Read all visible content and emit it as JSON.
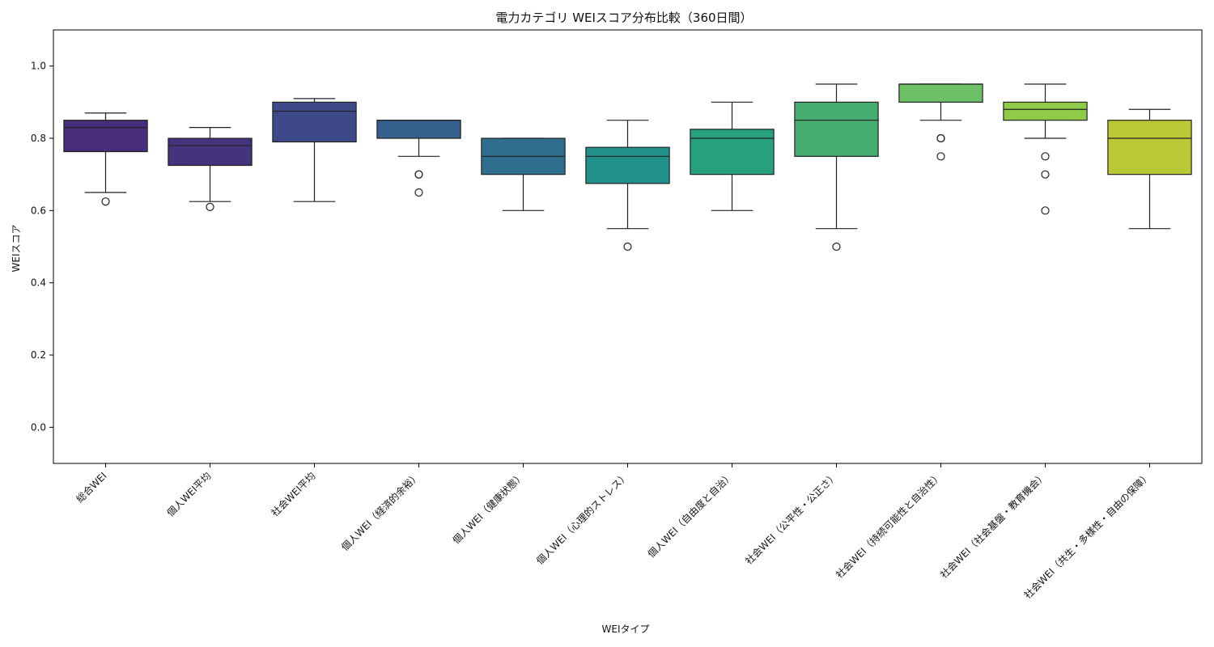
{
  "chart_data": {
    "type": "box",
    "title": "電力カテゴリ WEIスコア分布比較（360日間）",
    "xlabel": "WEIタイプ",
    "ylabel": "WEIスコア",
    "ylim": [
      -0.1,
      1.1
    ],
    "yticks": [
      "0.0",
      "0.2",
      "0.4",
      "0.6",
      "0.8",
      "1.0"
    ],
    "grid": false,
    "categories": [
      "総合WEI",
      "個人WEI平均",
      "社会WEI平均",
      "個人WEI（経済的余裕）",
      "個人WEI（健康状態）",
      "個人WEI（心理的ストレス）",
      "個人WEI（自由度と自治）",
      "社会WEI（公平性・公正さ）",
      "社会WEI（持続可能性と自治性）",
      "社会WEI（社会基盤・教育機会）",
      "社会WEI（共生・多様性・自由の保障）"
    ],
    "boxes": [
      {
        "whisker_low": 0.65,
        "q1": 0.763,
        "median": 0.83,
        "q3": 0.85,
        "whisker_high": 0.87,
        "outliers": [
          0.625
        ],
        "color": "#472d7b"
      },
      {
        "whisker_low": 0.625,
        "q1": 0.725,
        "median": 0.78,
        "q3": 0.8,
        "whisker_high": 0.83,
        "outliers": [
          0.61
        ],
        "color": "#46337e"
      },
      {
        "whisker_low": 0.625,
        "q1": 0.79,
        "median": 0.875,
        "q3": 0.9,
        "whisker_high": 0.91,
        "outliers": [],
        "color": "#3e4989"
      },
      {
        "whisker_low": 0.75,
        "q1": 0.8,
        "median": 0.85,
        "q3": 0.85,
        "whisker_high": 0.85,
        "outliers": [
          0.7,
          0.7,
          0.65
        ],
        "color": "#355f8d"
      },
      {
        "whisker_low": 0.6,
        "q1": 0.7,
        "median": 0.75,
        "q3": 0.8,
        "whisker_high": 0.8,
        "outliers": [],
        "color": "#2e6e8e"
      },
      {
        "whisker_low": 0.55,
        "q1": 0.675,
        "median": 0.75,
        "q3": 0.775,
        "whisker_high": 0.85,
        "outliers": [
          0.5
        ],
        "color": "#21918c"
      },
      {
        "whisker_low": 0.6,
        "q1": 0.7,
        "median": 0.8,
        "q3": 0.825,
        "whisker_high": 0.9,
        "outliers": [],
        "color": "#27a07e"
      },
      {
        "whisker_low": 0.55,
        "q1": 0.75,
        "median": 0.85,
        "q3": 0.9,
        "whisker_high": 0.95,
        "outliers": [
          0.5
        ],
        "color": "#45ab6e"
      },
      {
        "whisker_low": 0.85,
        "q1": 0.9,
        "median": 0.95,
        "q3": 0.95,
        "whisker_high": 0.95,
        "outliers": [
          0.8,
          0.8,
          0.75
        ],
        "color": "#6ec066"
      },
      {
        "whisker_low": 0.8,
        "q1": 0.85,
        "median": 0.88,
        "q3": 0.9,
        "whisker_high": 0.95,
        "outliers": [
          0.75,
          0.7,
          0.6
        ],
        "color": "#8fcb46"
      },
      {
        "whisker_low": 0.55,
        "q1": 0.7,
        "median": 0.8,
        "q3": 0.85,
        "whisker_high": 0.88,
        "outliers": [],
        "color": "#b8c934"
      }
    ]
  }
}
